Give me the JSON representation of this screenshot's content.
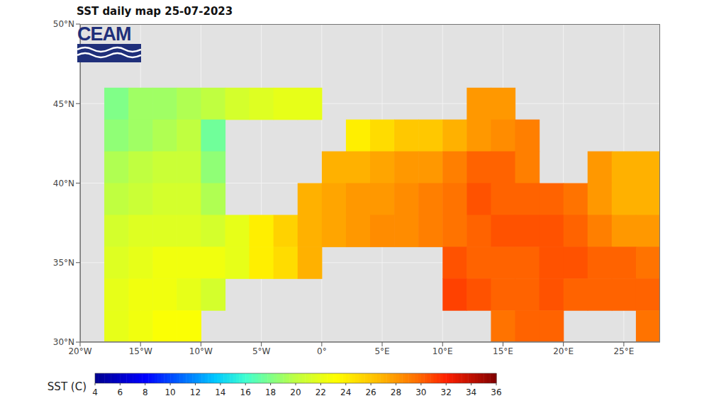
{
  "chart_data": {
    "type": "heatmap",
    "title": "SST daily map 25-07-2023",
    "logo": "CEAM",
    "x": [
      -19,
      -17,
      -15,
      -13,
      -11,
      -9,
      -7,
      -5,
      -3,
      -1,
      1,
      3,
      5,
      7,
      9,
      11,
      13,
      15,
      17,
      19,
      21,
      23,
      25,
      27
    ],
    "y": [
      49,
      47,
      45,
      43,
      41,
      39,
      37,
      35,
      33,
      31
    ],
    "values": [
      [
        null,
        null,
        null,
        null,
        null,
        null,
        null,
        null,
        null,
        null,
        null,
        null,
        null,
        null,
        null,
        null,
        null,
        null,
        null,
        null,
        null,
        null,
        null,
        null
      ],
      [
        null,
        null,
        null,
        null,
        null,
        null,
        null,
        null,
        null,
        null,
        null,
        null,
        null,
        null,
        null,
        null,
        null,
        null,
        null,
        null,
        null,
        null,
        null,
        null
      ],
      [
        null,
        18,
        19,
        19,
        19.5,
        20,
        21,
        21.5,
        22,
        22,
        null,
        null,
        null,
        null,
        null,
        null,
        28,
        28,
        null,
        null,
        null,
        null,
        null,
        null
      ],
      [
        null,
        18.5,
        19,
        19.5,
        20,
        17.5,
        null,
        null,
        null,
        null,
        null,
        24,
        25,
        26,
        26,
        27,
        28,
        28.5,
        29,
        null,
        null,
        null,
        null,
        null
      ],
      [
        null,
        19.5,
        20,
        20.5,
        20.5,
        18.5,
        null,
        null,
        null,
        null,
        27,
        27,
        27.5,
        28,
        28,
        29,
        30,
        30,
        29,
        null,
        null,
        28,
        27,
        27
      ],
      [
        null,
        20,
        20.5,
        21,
        21,
        19.5,
        null,
        null,
        null,
        27,
        27.5,
        28,
        28,
        28.5,
        29,
        29.5,
        30.5,
        30,
        30,
        30,
        29.5,
        28,
        27,
        27
      ],
      [
        null,
        21,
        21.5,
        21.5,
        21.5,
        21,
        22,
        24,
        25.5,
        27,
        27.5,
        28,
        28.5,
        28.5,
        29,
        29.5,
        30,
        30.5,
        30.5,
        30.5,
        30,
        29,
        28,
        28
      ],
      [
        null,
        21.5,
        22,
        22.5,
        22.5,
        22.5,
        22,
        24,
        25,
        27,
        null,
        null,
        null,
        null,
        null,
        30.5,
        30,
        30,
        30,
        30.5,
        30.5,
        30,
        30,
        29.5
      ],
      [
        null,
        22,
        22.5,
        22.5,
        22,
        21,
        null,
        null,
        null,
        null,
        null,
        null,
        null,
        null,
        null,
        31,
        30.5,
        30,
        30,
        30.5,
        30,
        30,
        30,
        30
      ],
      [
        null,
        22,
        22.5,
        23,
        23,
        null,
        null,
        null,
        null,
        null,
        null,
        null,
        null,
        null,
        null,
        null,
        null,
        29.5,
        30,
        30,
        null,
        null,
        null,
        29.5
      ]
    ],
    "xlim": [
      -20,
      28
    ],
    "xticks": [
      {
        "value": -20,
        "label": "20°W"
      },
      {
        "value": -15,
        "label": "15°W"
      },
      {
        "value": -10,
        "label": "10°W"
      },
      {
        "value": -5,
        "label": "5°W"
      },
      {
        "value": 0,
        "label": "0°"
      },
      {
        "value": 5,
        "label": "5°E"
      },
      {
        "value": 10,
        "label": "10°E"
      },
      {
        "value": 15,
        "label": "15°E"
      },
      {
        "value": 20,
        "label": "20°E"
      },
      {
        "value": 25,
        "label": "25°E"
      }
    ],
    "ylim": [
      30,
      50
    ],
    "yticks": [
      {
        "value": 30,
        "label": "30°N"
      },
      {
        "value": 35,
        "label": "35°N"
      },
      {
        "value": 40,
        "label": "40°N"
      },
      {
        "value": 45,
        "label": "45°N"
      },
      {
        "value": 50,
        "label": "50°N"
      }
    ],
    "grid": true,
    "colorbar": {
      "label": "SST (C)",
      "range": [
        4,
        36
      ],
      "ticks": [
        4,
        6,
        8,
        10,
        12,
        14,
        16,
        18,
        20,
        22,
        24,
        26,
        28,
        30,
        32,
        34,
        36
      ]
    }
  }
}
